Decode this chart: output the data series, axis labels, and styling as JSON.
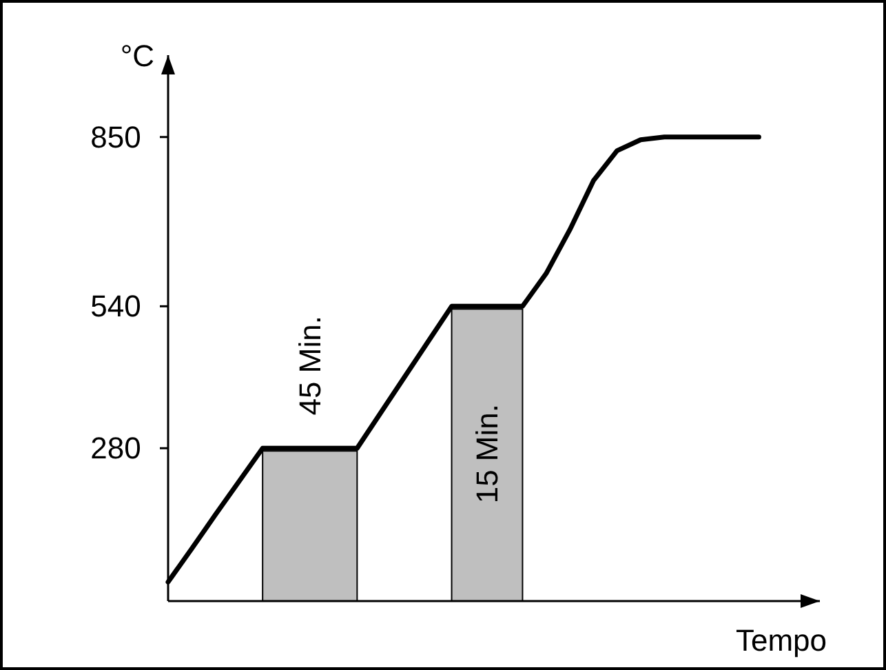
{
  "chart_data": {
    "type": "line",
    "xlabel": "Tempo",
    "ylabel": "°C",
    "tick_labels": "y",
    "ylim": [
      0,
      1000
    ],
    "yticks": [
      280,
      540,
      850
    ],
    "categories": [
      null,
      null,
      null,
      null,
      null,
      null,
      null,
      null,
      null,
      null,
      null,
      null,
      null,
      null,
      null,
      null,
      null,
      null,
      null,
      null,
      null,
      null,
      null,
      null,
      null,
      null
    ],
    "series": [
      {
        "color": "#000000",
        "values": [
          35,
          96,
          158,
          219,
          280,
          280,
          280,
          280,
          280,
          345,
          410,
          475,
          540,
          540,
          540,
          540,
          600,
          680,
          770,
          825,
          845,
          850,
          850,
          850,
          850,
          850
        ]
      }
    ],
    "annotations": [
      "45 Min.",
      "15 Min."
    ]
  }
}
